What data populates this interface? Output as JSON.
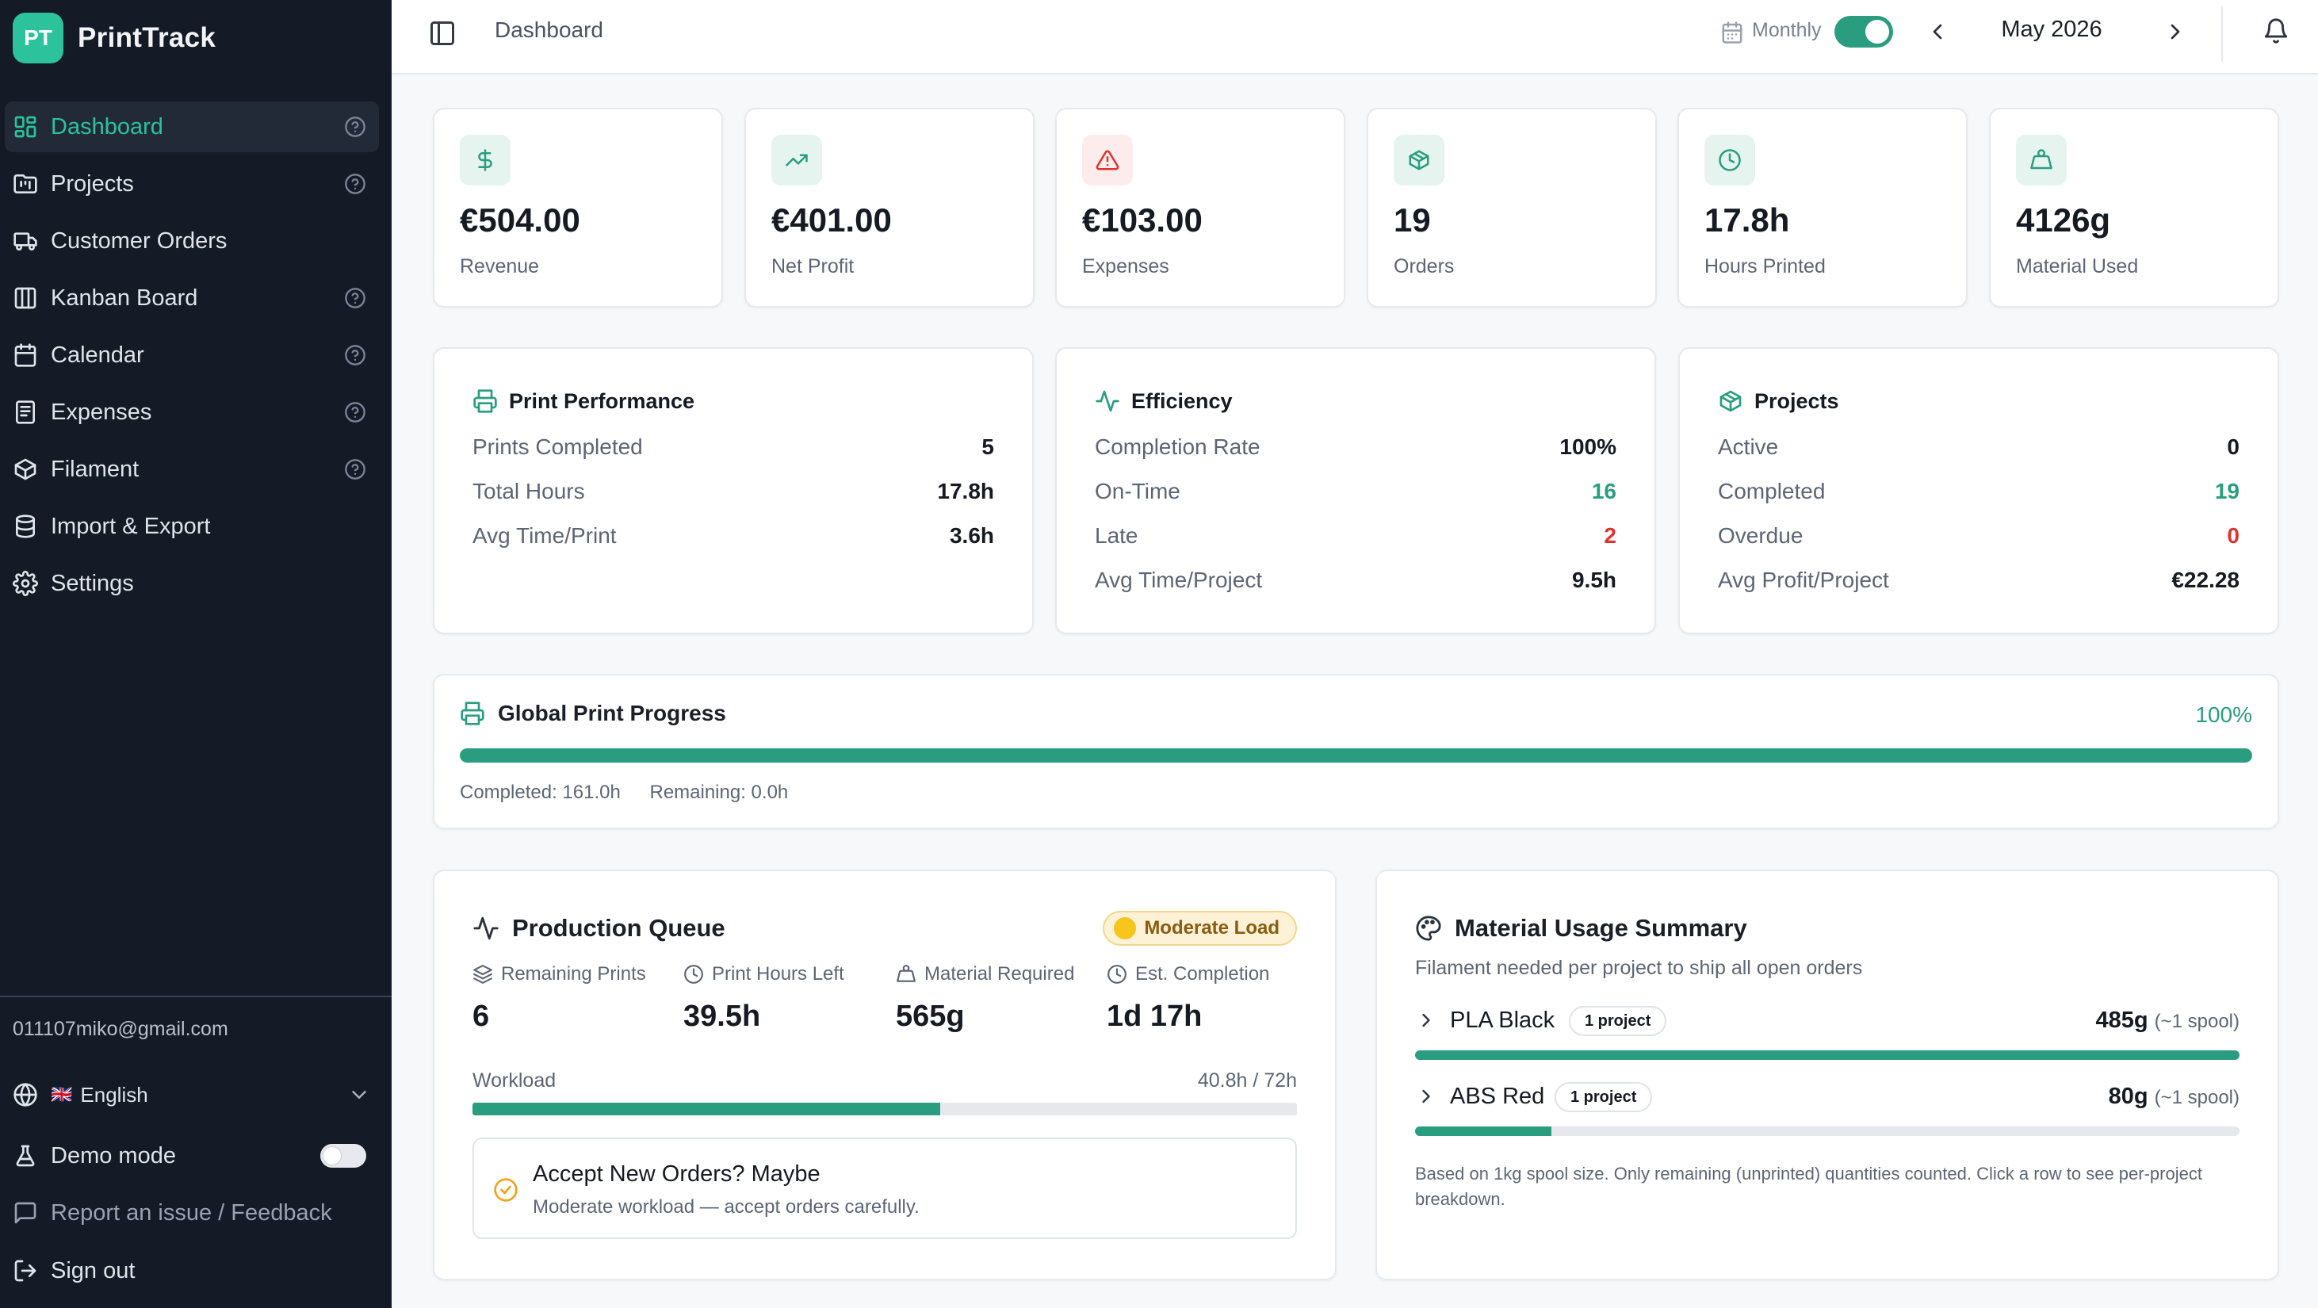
{
  "colors": {
    "accent": "#2a9d80",
    "sidebar_bg": "#141a26",
    "danger": "#e0312d",
    "warning": "#f0a21b"
  },
  "brand": {
    "logo_text": "PT",
    "name": "PrintTrack"
  },
  "sidebar": {
    "items": [
      {
        "label": "Dashboard",
        "icon": "grid-icon",
        "active": true,
        "help": true
      },
      {
        "label": "Projects",
        "icon": "folder-kanban-icon",
        "active": false,
        "help": true
      },
      {
        "label": "Customer Orders",
        "icon": "truck-icon",
        "active": false,
        "help": false
      },
      {
        "label": "Kanban Board",
        "icon": "columns-icon",
        "active": false,
        "help": true
      },
      {
        "label": "Calendar",
        "icon": "calendar-icon",
        "active": false,
        "help": true
      },
      {
        "label": "Expenses",
        "icon": "receipt-icon",
        "active": false,
        "help": true
      },
      {
        "label": "Filament",
        "icon": "box-icon",
        "active": false,
        "help": true
      },
      {
        "label": "Import & Export",
        "icon": "database-icon",
        "active": false,
        "help": false
      },
      {
        "label": "Settings",
        "icon": "gear-icon",
        "active": false,
        "help": false
      }
    ],
    "email": "011107miko@gmail.com",
    "language": {
      "flag": "🇬🇧",
      "label": "English"
    },
    "demo_mode": {
      "label": "Demo mode",
      "enabled": false
    },
    "report_label": "Report an issue / Feedback",
    "signout_label": "Sign out"
  },
  "topbar": {
    "title": "Dashboard",
    "period_label": "Monthly",
    "period_toggle_on": true,
    "month": "May 2026"
  },
  "stats": [
    {
      "value": "€504.00",
      "label": "Revenue",
      "icon": "dollar-icon",
      "bg": "#e6f4ef",
      "fg": "#2a9d80"
    },
    {
      "value": "€401.00",
      "label": "Net Profit",
      "icon": "trending-up-icon",
      "bg": "#e6f4ef",
      "fg": "#2a9d80"
    },
    {
      "value": "€103.00",
      "label": "Expenses",
      "icon": "alert-triangle-icon",
      "bg": "#fdecec",
      "fg": "#e0312d"
    },
    {
      "value": "19",
      "label": "Orders",
      "icon": "package-icon",
      "bg": "#e6f4ef",
      "fg": "#2a9d80"
    },
    {
      "value": "17.8h",
      "label": "Hours Printed",
      "icon": "clock-icon",
      "bg": "#e6f4ef",
      "fg": "#2a9d80"
    },
    {
      "value": "4126g",
      "label": "Material Used",
      "icon": "weight-icon",
      "bg": "#e6f4ef",
      "fg": "#2a9d80"
    }
  ],
  "print_performance": {
    "title": "Print Performance",
    "rows": [
      {
        "k": "Prints Completed",
        "v": "5"
      },
      {
        "k": "Total Hours",
        "v": "17.8h"
      },
      {
        "k": "Avg Time/Print",
        "v": "3.6h"
      }
    ]
  },
  "efficiency": {
    "title": "Efficiency",
    "rows": [
      {
        "k": "Completion Rate",
        "v": "100%"
      },
      {
        "k": "On-Time",
        "v": "16"
      },
      {
        "k": "Late",
        "v": "2"
      },
      {
        "k": "Avg Time/Project",
        "v": "9.5h"
      }
    ]
  },
  "projects": {
    "title": "Projects",
    "rows": [
      {
        "k": "Active",
        "v": "0"
      },
      {
        "k": "Completed",
        "v": "19"
      },
      {
        "k": "Overdue",
        "v": "0"
      },
      {
        "k": "Avg Profit/Project",
        "v": "€22.28"
      }
    ]
  },
  "global_progress": {
    "title": "Global Print Progress",
    "percent_text": "100%",
    "fraction": 1.0,
    "completed": "Completed: 161.0h",
    "remaining": "Remaining: 0.0h"
  },
  "production_queue": {
    "title": "Production Queue",
    "load_badge": "Moderate Load",
    "columns": [
      {
        "label": "Remaining Prints",
        "value": "6",
        "icon": "layers-icon"
      },
      {
        "label": "Print Hours Left",
        "value": "39.5h",
        "icon": "clock-icon"
      },
      {
        "label": "Material Required",
        "value": "565g",
        "icon": "weight-icon"
      },
      {
        "label": "Est. Completion",
        "value": "1d 17h",
        "icon": "clock-icon"
      }
    ],
    "workload_label": "Workload",
    "workload_value": "40.8h / 72h",
    "workload_fraction": 0.567,
    "accept_title": "Accept New Orders? Maybe",
    "accept_sub": "Moderate workload — accept orders carefully."
  },
  "material_usage": {
    "title": "Material Usage Summary",
    "subtitle": "Filament needed per project to ship all open orders",
    "items": [
      {
        "name": "PLA Black",
        "pill": "1 project",
        "amount": "485g",
        "spools": "(~1 spool)",
        "fraction": 1.0
      },
      {
        "name": "ABS Red",
        "pill": "1 project",
        "amount": "80g",
        "spools": "(~1 spool)",
        "fraction": 0.165
      }
    ],
    "note": "Based on 1kg spool size. Only remaining (unprinted) quantities counted. Click a row to see per-project breakdown."
  }
}
